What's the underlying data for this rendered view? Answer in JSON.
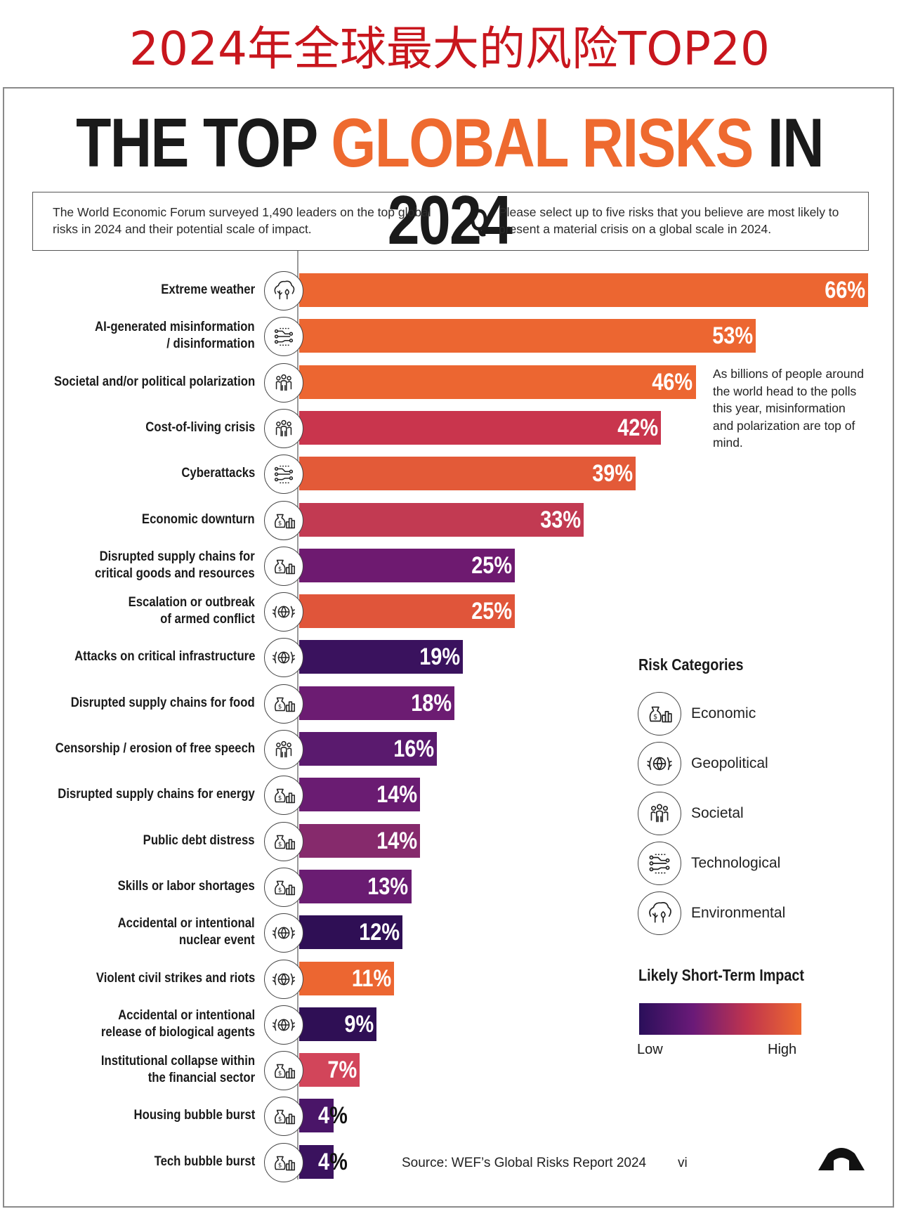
{
  "header": {
    "cn_title": "2024年全球最大的风险TOP20",
    "title_part1": "THE TOP ",
    "title_highlight": "GLOBAL RISKS",
    "title_part2": " IN 2024"
  },
  "info": {
    "intro": "The World Economic Forum surveyed 1,490 leaders on the top global risks in 2024 and their potential scale of impact.",
    "q_letter": "Q",
    "question": "Please select up to five risks that you believe are most likely to present a material crisis on a global scale in 2024."
  },
  "annotation": "As billions of people around the world head to the polls this year, misinformation and polarization are top of mind.",
  "legend": {
    "categories_title": "Risk Categories",
    "categories": [
      {
        "label": "Economic",
        "icon": "economic-icon"
      },
      {
        "label": "Geopolitical",
        "icon": "geopolitical-icon"
      },
      {
        "label": "Societal",
        "icon": "societal-icon"
      },
      {
        "label": "Technological",
        "icon": "technological-icon"
      },
      {
        "label": "Environmental",
        "icon": "environmental-icon"
      }
    ],
    "impact_title": "Likely Short-Term Impact",
    "impact_low": "Low",
    "impact_high": "High",
    "impact_colors": [
      "#2a0f5a",
      "#6a1a78",
      "#c0344e",
      "#ee6a2f"
    ]
  },
  "footer": {
    "source": "Source: WEF’s Global Risks Report 2024",
    "credit": "vi"
  },
  "chart_data": {
    "type": "bar",
    "orientation": "horizontal",
    "x_range": [
      0,
      66
    ],
    "categories": [
      "Extreme weather",
      "AI-generated misinformation / disinformation",
      "Societal and/or political polarization",
      "Cost-of-living crisis",
      "Cyberattacks",
      "Economic downturn",
      "Disrupted supply chains for critical goods and resources",
      "Escalation or outbreak of armed conflict",
      "Attacks on critical infrastructure",
      "Disrupted supply chains for food",
      "Censorship / erosion of free speech",
      "Disrupted supply chains for energy",
      "Public debt distress",
      "Skills or labor shortages",
      "Accidental or intentional nuclear event",
      "Violent civil strikes and riots",
      "Accidental or intentional release of biological agents",
      "Institutional collapse within the financial sector",
      "Housing bubble burst",
      "Tech bubble burst"
    ],
    "label_lines": [
      [
        "Extreme weather"
      ],
      [
        "AI-generated misinformation",
        "/ disinformation"
      ],
      [
        "Societal and/or political polarization"
      ],
      [
        "Cost-of-living crisis"
      ],
      [
        "Cyberattacks"
      ],
      [
        "Economic downturn"
      ],
      [
        "Disrupted supply chains for",
        "critical goods and resources"
      ],
      [
        "Escalation or outbreak",
        "of armed conflict"
      ],
      [
        "Attacks on critical infrastructure"
      ],
      [
        "Disrupted supply chains for food"
      ],
      [
        "Censorship / erosion of free speech"
      ],
      [
        "Disrupted supply chains for energy"
      ],
      [
        "Public debt distress"
      ],
      [
        "Skills or labor shortages"
      ],
      [
        "Accidental or intentional",
        "nuclear event"
      ],
      [
        "Violent civil strikes and riots"
      ],
      [
        "Accidental or intentional",
        "release of biological agents"
      ],
      [
        "Institutional collapse within",
        "the financial sector"
      ],
      [
        "Housing bubble burst"
      ],
      [
        "Tech bubble burst"
      ]
    ],
    "values": [
      66,
      53,
      46,
      42,
      39,
      33,
      25,
      25,
      19,
      18,
      16,
      14,
      14,
      13,
      12,
      11,
      9,
      7,
      4,
      4
    ],
    "value_labels": [
      "66%",
      "53%",
      "46%",
      "42%",
      "39%",
      "33%",
      "25%",
      "25%",
      "19%",
      "18%",
      "16%",
      "14%",
      "14%",
      "13%",
      "12%",
      "11%",
      "9%",
      "7%",
      "4",
      "4"
    ],
    "outside_suffix": "%",
    "risk_category": [
      "Environmental",
      "Technological",
      "Societal",
      "Societal",
      "Technological",
      "Economic",
      "Economic",
      "Geopolitical",
      "Geopolitical",
      "Economic",
      "Societal",
      "Economic",
      "Economic",
      "Economic",
      "Geopolitical",
      "Geopolitical",
      "Geopolitical",
      "Economic",
      "Economic",
      "Economic"
    ],
    "bar_colors": [
      "#ec6631",
      "#ec6631",
      "#ec6631",
      "#c9354d",
      "#e35a38",
      "#c23a52",
      "#6e1a70",
      "#e0553a",
      "#3a125e",
      "#6c1c72",
      "#5a1a6e",
      "#6a1c72",
      "#862a6c",
      "#6a1c72",
      "#2f0f55",
      "#ec6631",
      "#2f0f55",
      "#d2455a",
      "#4a1568",
      "#3a125e"
    ]
  }
}
